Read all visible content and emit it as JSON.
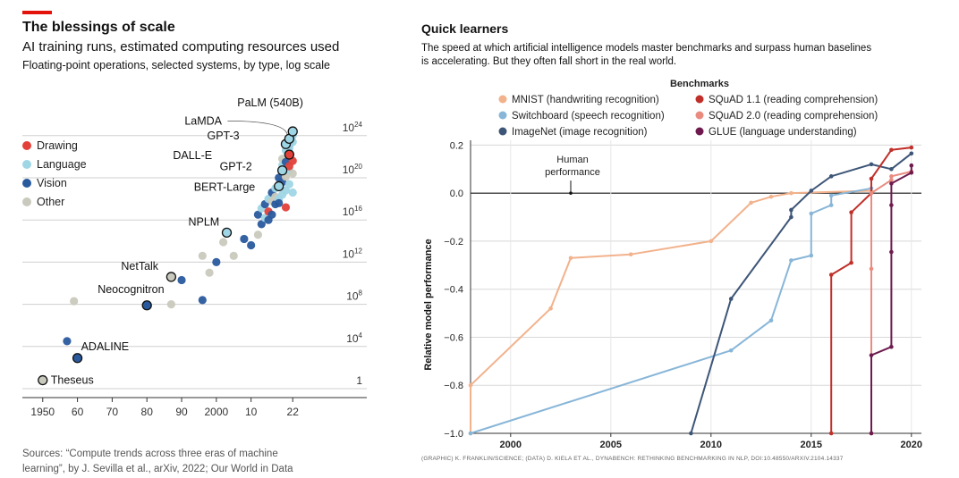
{
  "left": {
    "title": "The blessings of scale",
    "subtitle": "AI training runs, estimated computing resources used",
    "description": "Floating-point operations, selected systems, by type, log scale",
    "source_line1": "Sources: “Compute trends across three eras of machine",
    "source_line2": "learning”, by J. Sevilla et al., arXiv, 2022; Our World in Data",
    "colors": {
      "Drawing": "#e3403a",
      "Language": "#9fd6e6",
      "Vision": "#2a5a9e",
      "Other": "#c9c9bd"
    }
  },
  "right": {
    "title": "Quick learners",
    "subtitle_line1": "The speed at which artificial intelligence models master benchmarks and surpass human baselines",
    "subtitle_line2": "is accelerating. But they often fall short in the real world.",
    "credit": "(GRAPHIC) K. FRANKLIN/SCIENCE; (DATA) D. KIELA ET AL., DYNABENCH: RETHINKING BENCHMARKING IN NLP, DOI:10.48550/ARXIV.2104.14337"
  },
  "chart_data": [
    {
      "type": "scatter",
      "xlim": [
        1948,
        2024
      ],
      "y_scale": "log10",
      "ylim_exponent": [
        0,
        25
      ],
      "x_ticks": [
        "1950",
        "60",
        "70",
        "80",
        "90",
        "2000",
        "10",
        "22"
      ],
      "x_tick_values": [
        1950,
        1960,
        1970,
        1980,
        1990,
        2000,
        2010,
        2022
      ],
      "y_ticks": [
        {
          "exp": 24,
          "base": "10",
          "sup": "24"
        },
        {
          "exp": 20,
          "base": "10",
          "sup": "20"
        },
        {
          "exp": 16,
          "base": "10",
          "sup": "16"
        },
        {
          "exp": 12,
          "base": "10",
          "sup": "12"
        },
        {
          "exp": 8,
          "base": "10",
          "sup": "8"
        },
        {
          "exp": 4,
          "base": "10",
          "sup": "4"
        },
        {
          "exp": 0,
          "base": "1",
          "sup": ""
        }
      ],
      "legend": [
        "Drawing",
        "Language",
        "Vision",
        "Other"
      ],
      "labeled_points": [
        {
          "label": "Theseus",
          "x": 1950,
          "exp": 0.8,
          "type": "Other"
        },
        {
          "label": "ADALINE",
          "x": 1960,
          "exp": 2.9,
          "type": "Vision"
        },
        {
          "label": "Neocognitron",
          "x": 1980,
          "exp": 7.9,
          "type": "Vision"
        },
        {
          "label": "NetTalk",
          "x": 1987,
          "exp": 10.6,
          "type": "Other"
        },
        {
          "label": "NPLM",
          "x": 2003,
          "exp": 14.8,
          "type": "Language"
        },
        {
          "label": "BERT-Large",
          "x": 2018,
          "exp": 19.2,
          "type": "Language"
        },
        {
          "label": "GPT-2",
          "x": 2019,
          "exp": 20.7,
          "type": "Language"
        },
        {
          "label": "DALL-E",
          "x": 2021,
          "exp": 22.2,
          "type": "Drawing"
        },
        {
          "label": "GPT-3",
          "x": 2020,
          "exp": 23.2,
          "type": "Language"
        },
        {
          "label": "LaMDA",
          "x": 2021,
          "exp": 23.7,
          "type": "Language"
        },
        {
          "label": "PaLM (540B)",
          "x": 2022,
          "exp": 24.4,
          "type": "Language"
        }
      ],
      "points": [
        {
          "x": 1959,
          "exp": 8.3,
          "type": "Other"
        },
        {
          "x": 1957,
          "exp": 4.5,
          "type": "Vision"
        },
        {
          "x": 1987,
          "exp": 8.0,
          "type": "Other"
        },
        {
          "x": 1990,
          "exp": 10.3,
          "type": "Vision"
        },
        {
          "x": 1996,
          "exp": 8.4,
          "type": "Vision"
        },
        {
          "x": 1998,
          "exp": 11.0,
          "type": "Other"
        },
        {
          "x": 1996,
          "exp": 12.6,
          "type": "Other"
        },
        {
          "x": 2000,
          "exp": 12.0,
          "type": "Vision"
        },
        {
          "x": 2002,
          "exp": 13.9,
          "type": "Other"
        },
        {
          "x": 2005,
          "exp": 12.6,
          "type": "Other"
        },
        {
          "x": 2008,
          "exp": 14.2,
          "type": "Vision"
        },
        {
          "x": 2010,
          "exp": 13.6,
          "type": "Vision"
        },
        {
          "x": 2012,
          "exp": 14.6,
          "type": "Other"
        },
        {
          "x": 2012,
          "exp": 16.5,
          "type": "Vision"
        },
        {
          "x": 2013,
          "exp": 15.6,
          "type": "Vision"
        },
        {
          "x": 2013,
          "exp": 17.1,
          "type": "Language"
        },
        {
          "x": 2014,
          "exp": 16.2,
          "type": "Language"
        },
        {
          "x": 2014,
          "exp": 17.5,
          "type": "Vision"
        },
        {
          "x": 2015,
          "exp": 16.8,
          "type": "Drawing"
        },
        {
          "x": 2015,
          "exp": 16.0,
          "type": "Vision"
        },
        {
          "x": 2015,
          "exp": 18.0,
          "type": "Language"
        },
        {
          "x": 2016,
          "exp": 16.5,
          "type": "Vision"
        },
        {
          "x": 2016,
          "exp": 17.8,
          "type": "Other"
        },
        {
          "x": 2016,
          "exp": 18.6,
          "type": "Vision"
        },
        {
          "x": 2017,
          "exp": 19.0,
          "type": "Language"
        },
        {
          "x": 2017,
          "exp": 17.5,
          "type": "Vision"
        },
        {
          "x": 2017,
          "exp": 18.2,
          "type": "Other"
        },
        {
          "x": 2018,
          "exp": 18.0,
          "type": "Language"
        },
        {
          "x": 2018,
          "exp": 20.0,
          "type": "Vision"
        },
        {
          "x": 2018,
          "exp": 17.6,
          "type": "Vision"
        },
        {
          "x": 2019,
          "exp": 18.4,
          "type": "Language"
        },
        {
          "x": 2019,
          "exp": 19.6,
          "type": "Vision"
        },
        {
          "x": 2019,
          "exp": 21.2,
          "type": "Language"
        },
        {
          "x": 2019,
          "exp": 21.8,
          "type": "Other"
        },
        {
          "x": 2020,
          "exp": 17.2,
          "type": "Drawing"
        },
        {
          "x": 2020,
          "exp": 18.8,
          "type": "Language"
        },
        {
          "x": 2020,
          "exp": 20.1,
          "type": "Other"
        },
        {
          "x": 2020,
          "exp": 21.5,
          "type": "Vision"
        },
        {
          "x": 2020,
          "exp": 22.6,
          "type": "Language"
        },
        {
          "x": 2021,
          "exp": 19.4,
          "type": "Language"
        },
        {
          "x": 2021,
          "exp": 20.7,
          "type": "Language"
        },
        {
          "x": 2021,
          "exp": 21.1,
          "type": "Drawing"
        },
        {
          "x": 2021,
          "exp": 23.1,
          "type": "Vision"
        },
        {
          "x": 2021,
          "exp": 22.8,
          "type": "Language"
        },
        {
          "x": 2022,
          "exp": 18.6,
          "type": "Language"
        },
        {
          "x": 2022,
          "exp": 21.6,
          "type": "Drawing"
        },
        {
          "x": 2022,
          "exp": 20.4,
          "type": "Other"
        },
        {
          "x": 2022,
          "exp": 23.4,
          "type": "Language"
        },
        {
          "x": 2022,
          "exp": 24.0,
          "type": "Language"
        }
      ]
    },
    {
      "type": "line",
      "xlabel": "",
      "ylabel": "Relative model performance",
      "xlim": [
        1998,
        2020.5
      ],
      "ylim": [
        -1.0,
        0.22
      ],
      "x_ticks": [
        2000,
        2005,
        2010,
        2015,
        2020
      ],
      "y_ticks": [
        0.2,
        0.0,
        -0.2,
        -0.4,
        -0.6,
        -0.8,
        -1.0
      ],
      "y_tick_labels": [
        "0.2",
        "0.0",
        "−0.2",
        "−0.4",
        "−0.6",
        "−0.8",
        "−1.0"
      ],
      "legend_title": "Benchmarks",
      "annotation": {
        "line1": "Human",
        "line2": "performance",
        "x": 2003,
        "y": 0.0
      },
      "series": [
        {
          "name": "MNIST (handwriting recognition)",
          "color": "#f2b28c",
          "x": [
            1998,
            1998,
            2002,
            2003,
            2006,
            2010,
            2012,
            2013,
            2014,
            2018
          ],
          "y": [
            -1.0,
            -0.8,
            -0.48,
            -0.27,
            -0.255,
            -0.2,
            -0.04,
            -0.015,
            0.0,
            0.01
          ]
        },
        {
          "name": "Switchboard (speech recognition)",
          "color": "#88b6d8",
          "x": [
            1998,
            2011,
            2013,
            2014,
            2015,
            2015,
            2016,
            2016,
            2018
          ],
          "y": [
            -1.0,
            -0.655,
            -0.53,
            -0.28,
            -0.26,
            -0.085,
            -0.05,
            -0.01,
            0.02
          ]
        },
        {
          "name": "ImageNet (image recognition)",
          "color": "#3d5577",
          "x": [
            2009,
            2011,
            2014,
            2014,
            2015,
            2016,
            2018,
            2019,
            2020
          ],
          "y": [
            -1.0,
            -0.44,
            -0.1,
            -0.07,
            0.01,
            0.07,
            0.12,
            0.1,
            0.165
          ]
        },
        {
          "name": "SQuAD 1.1 (reading comprehension)",
          "color": "#c0302a",
          "x": [
            2016,
            2016,
            2017,
            2017,
            2018,
            2018,
            2019,
            2020
          ],
          "y": [
            -1.0,
            -0.34,
            -0.29,
            -0.08,
            0.0,
            0.06,
            0.18,
            0.19
          ]
        },
        {
          "name": "SQuAD 2.0 (reading comprehension)",
          "color": "#ea8b80",
          "x": [
            2018,
            2018,
            2018,
            2019,
            2019,
            2020
          ],
          "y": [
            -1.0,
            -0.315,
            0.0,
            0.055,
            0.07,
            0.09
          ]
        },
        {
          "name": "GLUE (language understanding)",
          "color": "#6e1a4e",
          "x": [
            2018,
            2018,
            2019,
            2019,
            2019,
            2019,
            2020,
            2020
          ],
          "y": [
            -1.0,
            -0.675,
            -0.64,
            -0.245,
            -0.05,
            0.04,
            0.085,
            0.115
          ]
        }
      ]
    }
  ]
}
